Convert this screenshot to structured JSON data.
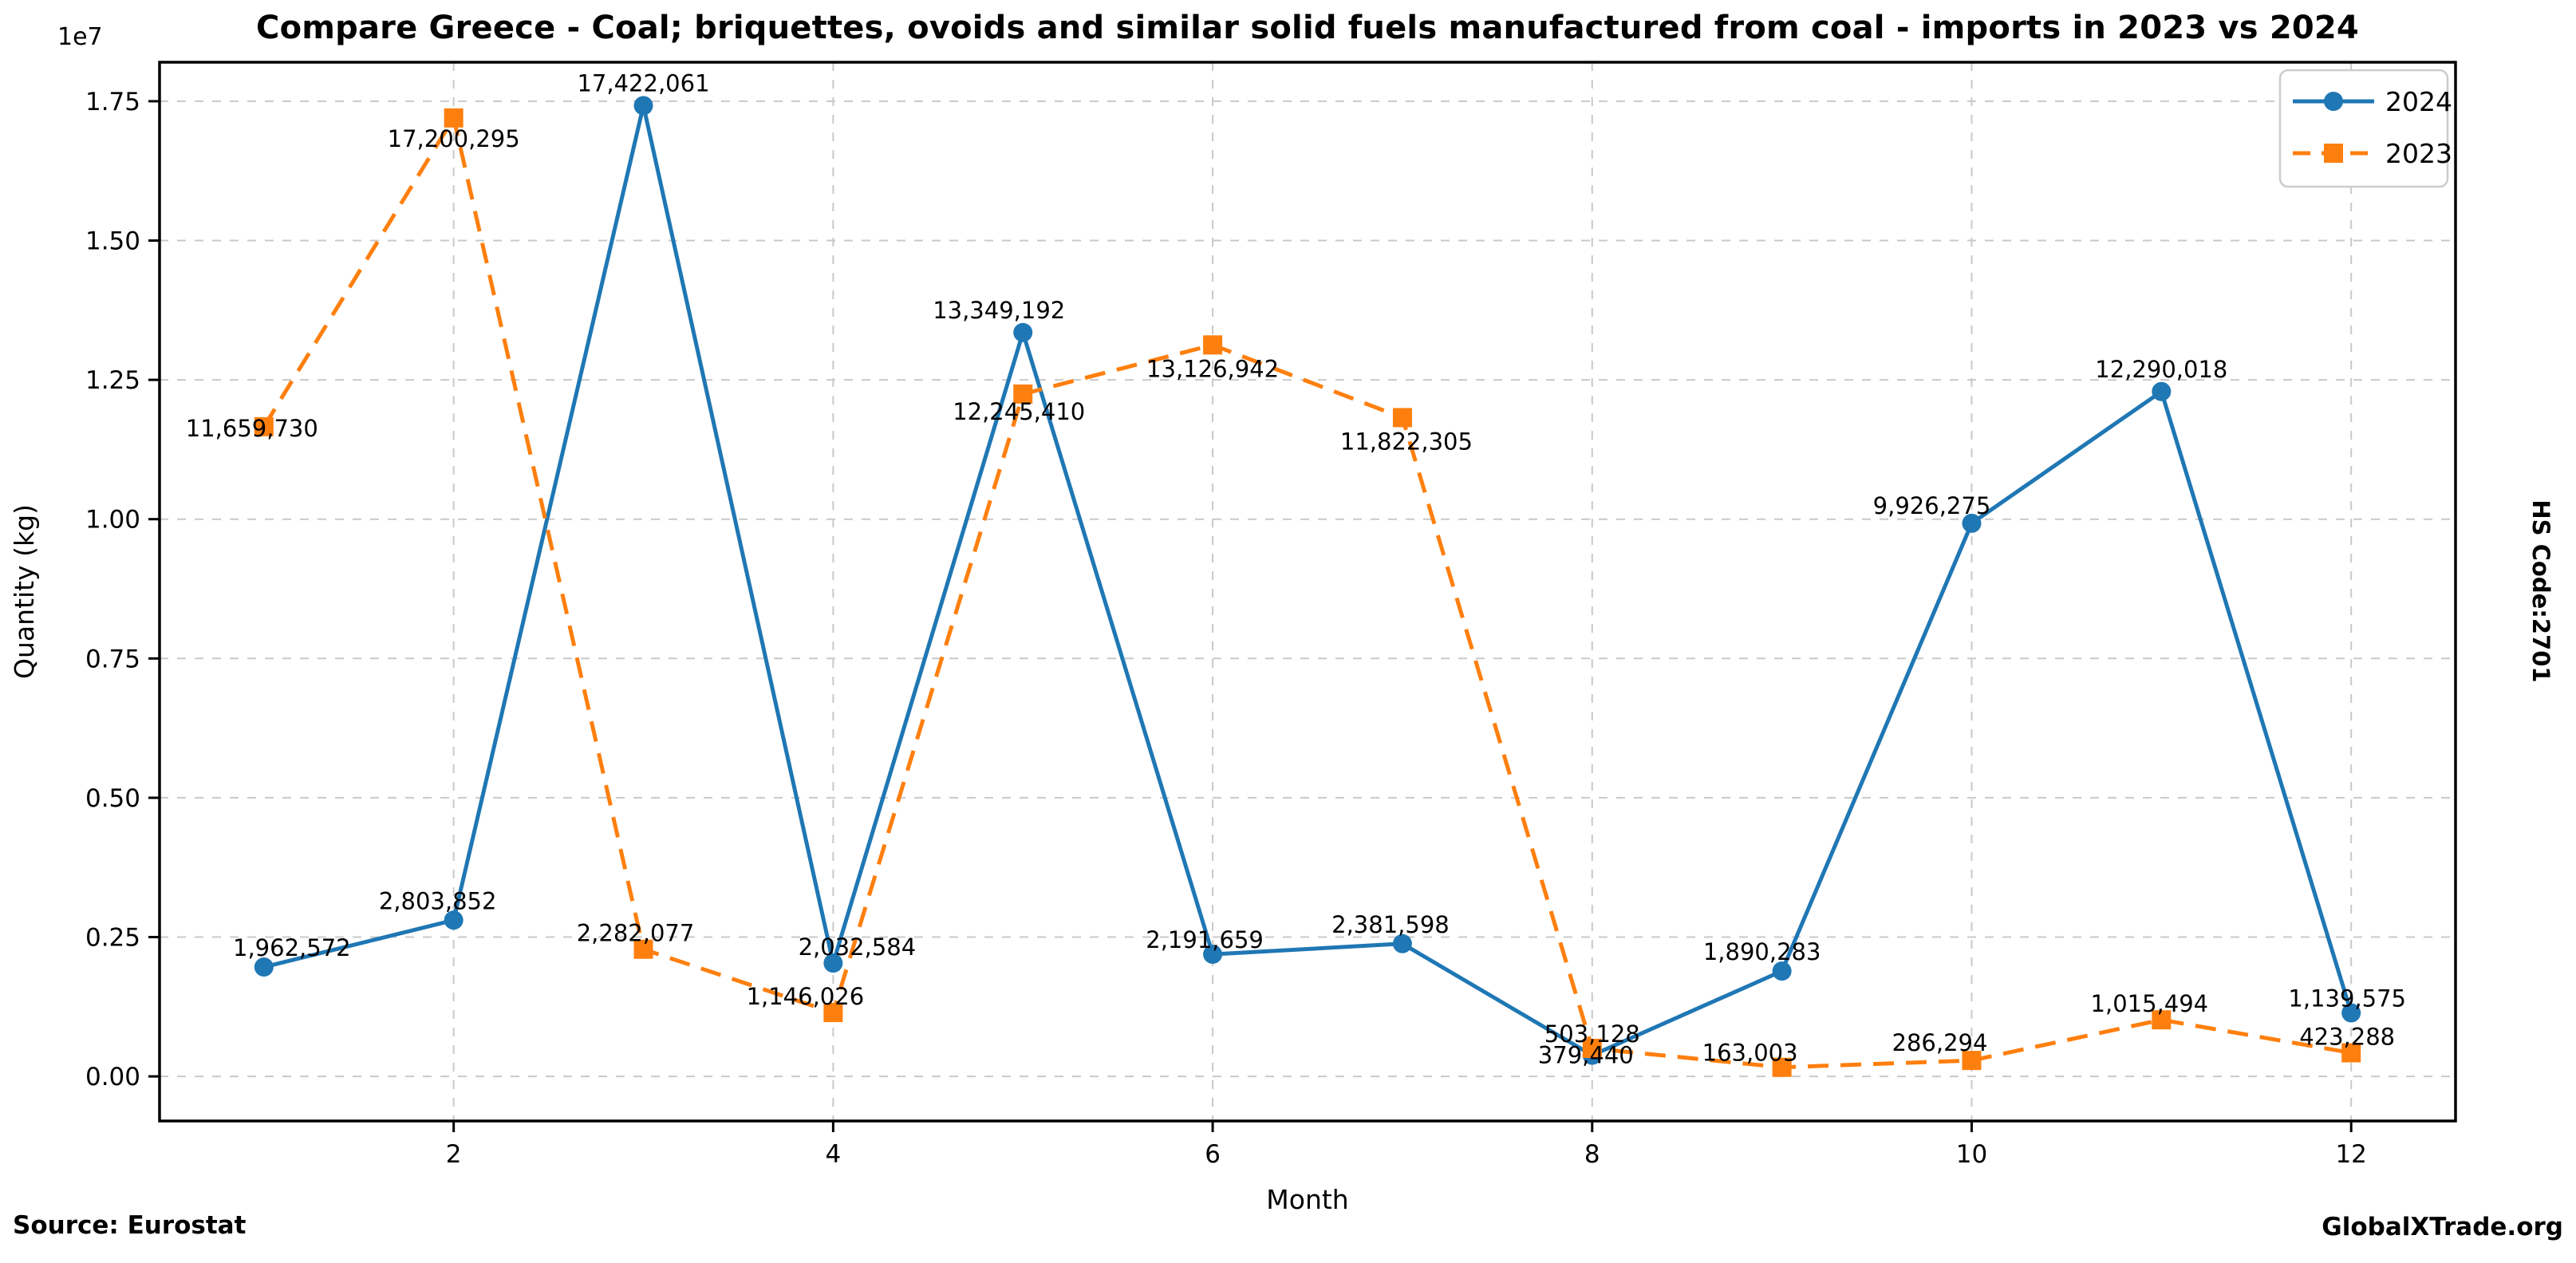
{
  "title": "Compare Greece - Coal; briquettes, ovoids and similar solid fuels manufactured from coal - imports in 2023 vs 2024",
  "footer": {
    "source": "Source: Eurostat",
    "brand": "GlobalXTrade.org"
  },
  "side_label": "HS Code:2701",
  "chart_data": {
    "type": "line",
    "title": "Compare Greece - Coal; briquettes, ovoids and similar solid fuels manufactured from coal - imports in 2023 vs 2024",
    "xlabel": "Month",
    "ylabel": "Quantity (kg)",
    "y_offset_text": "1e7",
    "x": [
      1,
      2,
      3,
      4,
      5,
      6,
      7,
      8,
      9,
      10,
      11,
      12
    ],
    "xticks": [
      2,
      4,
      6,
      8,
      10,
      12
    ],
    "yticks": [
      0,
      2500000,
      5000000,
      7500000,
      10000000,
      12500000,
      15000000,
      17500000
    ],
    "ytick_labels": [
      "0.00",
      "0.25",
      "0.50",
      "0.75",
      "1.00",
      "1.25",
      "1.50",
      "1.75"
    ],
    "xlim": [
      0.45,
      12.55
    ],
    "ylim": [
      -800000,
      18200000
    ],
    "grid": true,
    "legend_position": "top-right",
    "series": [
      {
        "name": "2024",
        "color": "#1f77b4",
        "linestyle": "solid",
        "marker": "circle",
        "values": [
          1962572,
          2803852,
          17422061,
          2032584,
          13349192,
          2191659,
          2381598,
          379440,
          1890283,
          9926275,
          12290018,
          1139575
        ]
      },
      {
        "name": "2023",
        "color": "#ff7f0e",
        "linestyle": "dashed",
        "marker": "square",
        "values": [
          11659730,
          17200295,
          2282077,
          1146026,
          12245410,
          13126942,
          11822305,
          503128,
          163003,
          286294,
          1015494,
          423288
        ]
      }
    ],
    "label_offsets": {
      "2024": [
        [
          35,
          -14
        ],
        [
          -20,
          -14
        ],
        [
          0,
          -18
        ],
        [
          30,
          -10
        ],
        [
          -30,
          -18
        ],
        [
          -10,
          -8
        ],
        [
          -15,
          -14
        ],
        [
          -8,
          10
        ],
        [
          -25,
          -14
        ],
        [
          -50,
          -12
        ],
        [
          0,
          -18
        ],
        [
          -5,
          -8
        ]
      ],
      "2023": [
        [
          -15,
          12
        ],
        [
          0,
          36
        ],
        [
          -10,
          -10
        ],
        [
          -35,
          -10
        ],
        [
          -5,
          32
        ],
        [
          0,
          40
        ],
        [
          5,
          40
        ],
        [
          0,
          -8
        ],
        [
          -40,
          -8
        ],
        [
          -40,
          -12
        ],
        [
          -15,
          -10
        ],
        [
          -5,
          -10
        ]
      ]
    }
  }
}
